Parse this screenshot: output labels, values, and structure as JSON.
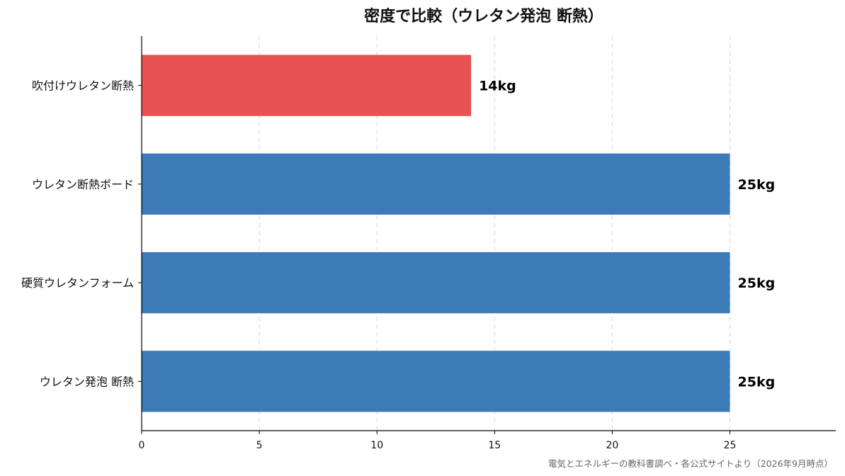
{
  "chart_data": {
    "type": "bar",
    "orientation": "horizontal",
    "title": "密度で比較（ウレタン発泡 断熱）",
    "categories": [
      "吹付けウレタン断熱",
      "ウレタン断熱ボード",
      "硬質ウレタンフォーム",
      "ウレタン発泡 断熱"
    ],
    "values": [
      14,
      25,
      25,
      25
    ],
    "value_labels": [
      "14kg",
      "25kg",
      "25kg",
      "25kg"
    ],
    "bar_colors": [
      "#e85252",
      "#3d7ab8",
      "#3d7ab8",
      "#3d7ab8"
    ],
    "xlim": [
      0,
      29.5
    ],
    "xticks": [
      0,
      5,
      10,
      15,
      20,
      25
    ],
    "xtick_labels": [
      "0",
      "5",
      "10",
      "15",
      "20",
      "25"
    ],
    "xlabel": "",
    "ylabel": "",
    "grid": "x-dashed",
    "legend": "none"
  },
  "footer": {
    "source": "電気とエネルギーの教科書調べ・各公式サイトより（2026年9月時点）"
  }
}
